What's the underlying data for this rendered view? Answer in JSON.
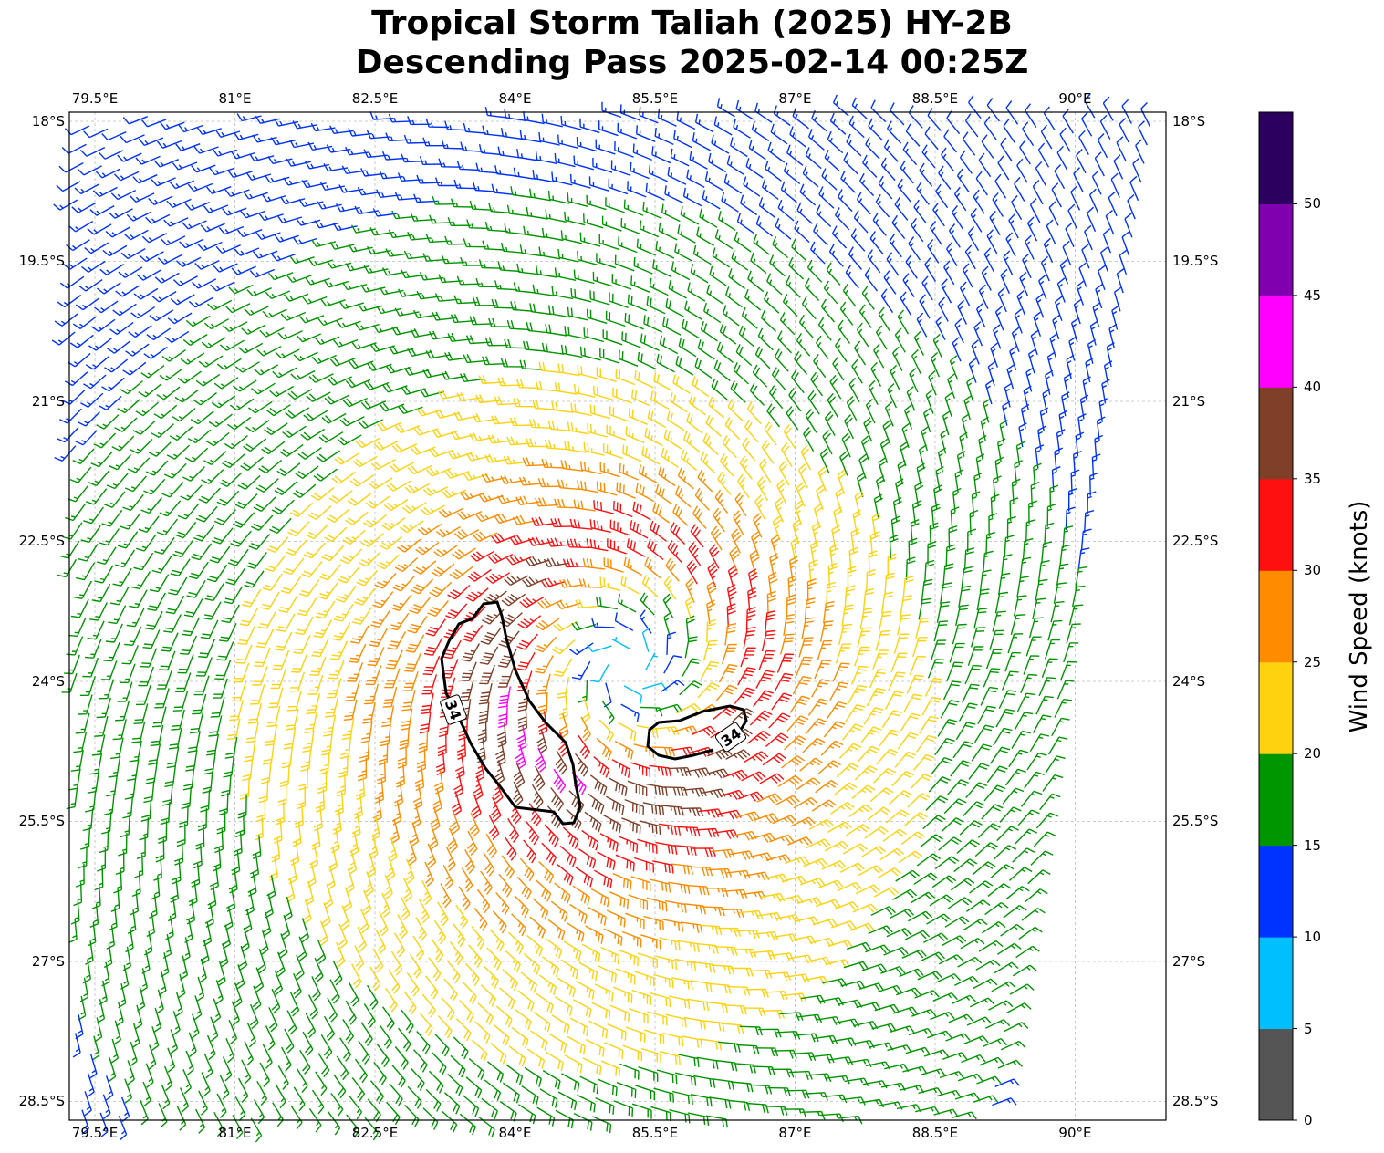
{
  "chart_data": {
    "type": "wind_barbs_map",
    "title": [
      "Tropical Storm Taliah (2025) HY-2B",
      "Descending Pass 2025-02-14 00:25Z"
    ],
    "lon_ticks": [
      "79.5°E",
      "81°E",
      "82.5°E",
      "84°E",
      "85.5°E",
      "87°E",
      "88.5°E",
      "90°E"
    ],
    "lon_values": [
      79.5,
      81,
      82.5,
      84,
      85.5,
      87,
      88.5,
      90
    ],
    "lat_ticks": [
      "18°S",
      "19.5°S",
      "21°S",
      "22.5°S",
      "24°S",
      "25.5°S",
      "27°S",
      "28.5°S"
    ],
    "lat_values": [
      -18,
      -19.5,
      -21,
      -22.5,
      -24,
      -25.5,
      -27,
      -28.5
    ],
    "lon_range": [
      79.23,
      90.97
    ],
    "lat_range": [
      -28.7,
      -17.9
    ],
    "grid": true,
    "storm_center": {
      "lon": 85.2,
      "lat": -23.85
    },
    "max_wind_kt": 38,
    "radius_max_wind_deg": 1.3,
    "contour": {
      "level": 34,
      "label": "34"
    },
    "colorbar": {
      "label": "Wind Speed (knots)",
      "levels": [
        0,
        5,
        10,
        15,
        20,
        25,
        30,
        35,
        40,
        45,
        50,
        55
      ],
      "tick_labels": [
        "0",
        "5",
        "10",
        "15",
        "20",
        "25",
        "30",
        "35",
        "40",
        "45",
        "50"
      ],
      "colors": [
        "#555555",
        "#00bfff",
        "#0033ff",
        "#009600",
        "#ffd20f",
        "#ff8c00",
        "#ff1010",
        "#7f3f28",
        "#ff00ff",
        "#8000b0",
        "#2c005e"
      ]
    }
  }
}
